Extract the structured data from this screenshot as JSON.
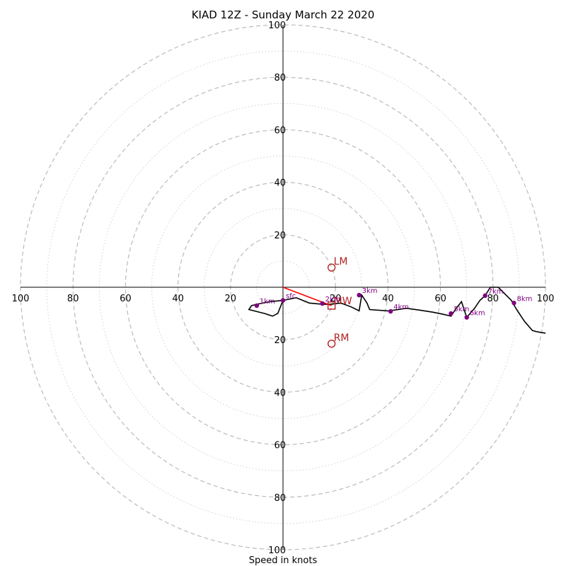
{
  "chart_data": {
    "type": "hodograph",
    "title": "KIAD 12Z - Sunday March 22 2020",
    "xlabel": "Speed in knots",
    "units": "knots",
    "range": [
      -100,
      100
    ],
    "ticks": {
      "x": [
        "100",
        "80",
        "60",
        "40",
        "20",
        "20",
        "40",
        "60",
        "80",
        "100"
      ],
      "y": [
        "100",
        "80",
        "60",
        "40",
        "20",
        "20",
        "40",
        "60",
        "80",
        "100"
      ],
      "values": [
        -100,
        -80,
        -60,
        -40,
        -20,
        20,
        40,
        60,
        80,
        100
      ]
    },
    "rings": {
      "dashed_every": 20,
      "dotted_every": 10,
      "max": 100
    },
    "hodograph": {
      "color": "#000000",
      "points": [
        [
          0,
          -5
        ],
        [
          5,
          -4
        ],
        [
          10,
          -6
        ],
        [
          15,
          -6.5
        ],
        [
          18,
          -6.5
        ],
        [
          22,
          -6
        ],
        [
          26,
          -7.5
        ],
        [
          29,
          -9
        ],
        [
          30,
          -3
        ],
        [
          32,
          -6
        ],
        [
          33,
          -8.5
        ],
        [
          40,
          -9
        ],
        [
          44,
          -8.5
        ],
        [
          47,
          -8
        ],
        [
          52,
          -8.7
        ],
        [
          57,
          -9.5
        ],
        [
          61,
          -10.3
        ],
        [
          64,
          -11
        ],
        [
          66,
          -8
        ],
        [
          68,
          -5.5
        ],
        [
          70,
          -11.5
        ],
        [
          73,
          -8
        ],
        [
          75,
          -5
        ],
        [
          77,
          -3.2
        ],
        [
          79,
          0
        ],
        [
          82,
          0
        ],
        [
          84,
          -2
        ],
        [
          87,
          -5
        ],
        [
          89,
          -8.5
        ],
        [
          92,
          -13
        ],
        [
          95,
          -16.5
        ],
        [
          97,
          -17
        ],
        [
          100,
          -17.5
        ]
      ],
      "left_branch": [
        [
          0,
          -5
        ],
        [
          -5,
          -5.5
        ],
        [
          -10,
          -6.5
        ],
        [
          -12,
          -7
        ],
        [
          -13,
          -8.5
        ],
        [
          -7,
          -10
        ],
        [
          -4,
          -11
        ],
        [
          -2,
          -10
        ],
        [
          0,
          -5
        ]
      ]
    },
    "height_markers": {
      "color": "#800080",
      "points": [
        {
          "label": "sfc",
          "x": 0,
          "y": -5
        },
        {
          "label": "1km",
          "x": -10,
          "y": -7
        },
        {
          "label": "2km",
          "x": 15,
          "y": -6.2
        },
        {
          "label": "3km",
          "x": 29,
          "y": -3
        },
        {
          "label": "4km",
          "x": 41,
          "y": -9.2
        },
        {
          "label": "5km",
          "x": 64,
          "y": -10
        },
        {
          "label": "6km",
          "x": 70,
          "y": -11.5
        },
        {
          "label": "7km",
          "x": 77,
          "y": -3.2
        },
        {
          "label": "8km",
          "x": 88,
          "y": -6
        }
      ]
    },
    "storm_motion": {
      "color": "#b22222",
      "bunkers_right": {
        "label": "RM",
        "x": 18.5,
        "y": -21.5
      },
      "bunkers_left": {
        "label": "LM",
        "x": 18.5,
        "y": 7.5
      },
      "mean_wind": {
        "label": "MW",
        "x": 18.5,
        "y": -7
      },
      "shear_vector": {
        "color": "#ff0000",
        "from": [
          0,
          0
        ],
        "to": [
          18.5,
          -7
        ]
      }
    }
  }
}
